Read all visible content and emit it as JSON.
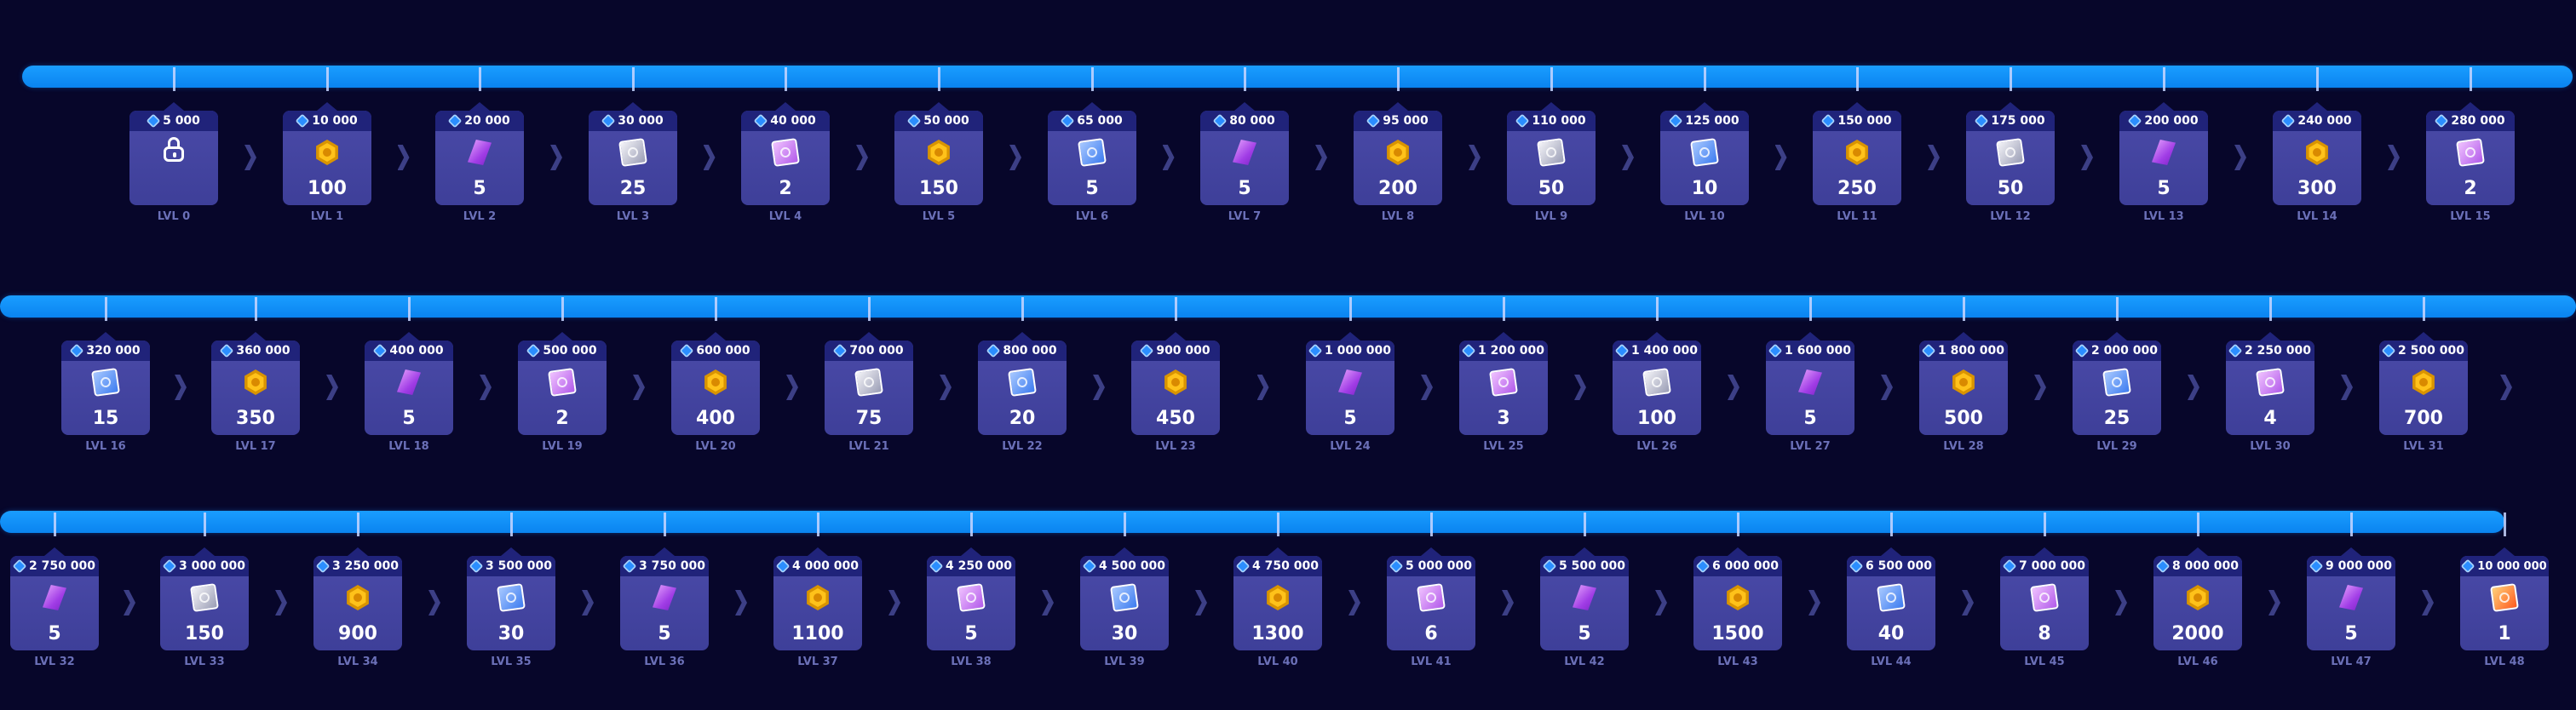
{
  "rows": [
    {
      "levels": [
        {
          "xp": "5 000",
          "reward": "lock",
          "amount": "",
          "label": "LVL 0"
        },
        {
          "xp": "10 000",
          "reward": "coin",
          "amount": "100",
          "label": "LVL 1"
        },
        {
          "xp": "20 000",
          "reward": "gem",
          "amount": "5",
          "label": "LVL 2"
        },
        {
          "xp": "30 000",
          "reward": "card-silver",
          "amount": "25",
          "label": "LVL 3"
        },
        {
          "xp": "40 000",
          "reward": "card-purple",
          "amount": "2",
          "label": "LVL 4"
        },
        {
          "xp": "50 000",
          "reward": "coin",
          "amount": "150",
          "label": "LVL 5"
        },
        {
          "xp": "65 000",
          "reward": "card-blue",
          "amount": "5",
          "label": "LVL 6"
        },
        {
          "xp": "80 000",
          "reward": "gem",
          "amount": "5",
          "label": "LVL 7"
        },
        {
          "xp": "95 000",
          "reward": "coin",
          "amount": "200",
          "label": "LVL 8"
        },
        {
          "xp": "110 000",
          "reward": "card-silver",
          "amount": "50",
          "label": "LVL 9"
        },
        {
          "xp": "125 000",
          "reward": "card-blue",
          "amount": "10",
          "label": "LVL 10"
        },
        {
          "xp": "150 000",
          "reward": "coin",
          "amount": "250",
          "label": "LVL 11"
        },
        {
          "xp": "175 000",
          "reward": "card-silver",
          "amount": "50",
          "label": "LVL 12"
        },
        {
          "xp": "200 000",
          "reward": "gem",
          "amount": "5",
          "label": "LVL 13"
        },
        {
          "xp": "240 000",
          "reward": "coin",
          "amount": "300",
          "label": "LVL 14"
        },
        {
          "xp": "280 000",
          "reward": "card-purple",
          "amount": "2",
          "label": "LVL 15"
        }
      ]
    },
    {
      "levels": [
        {
          "xp": "320 000",
          "reward": "card-blue",
          "amount": "15",
          "label": "LVL 16"
        },
        {
          "xp": "360 000",
          "reward": "coin",
          "amount": "350",
          "label": "LVL 17"
        },
        {
          "xp": "400 000",
          "reward": "gem",
          "amount": "5",
          "label": "LVL 18"
        },
        {
          "xp": "500 000",
          "reward": "card-purple",
          "amount": "2",
          "label": "LVL 19"
        },
        {
          "xp": "600 000",
          "reward": "coin",
          "amount": "400",
          "label": "LVL 20"
        },
        {
          "xp": "700 000",
          "reward": "card-silver",
          "amount": "75",
          "label": "LVL 21"
        },
        {
          "xp": "800 000",
          "reward": "card-blue",
          "amount": "20",
          "label": "LVL 22"
        },
        {
          "xp": "900 000",
          "reward": "coin",
          "amount": "450",
          "label": "LVL 23"
        },
        {
          "xp": "1 000 000",
          "reward": "gem",
          "amount": "5",
          "label": "LVL 24"
        },
        {
          "xp": "1 200 000",
          "reward": "card-purple",
          "amount": "3",
          "label": "LVL 25"
        },
        {
          "xp": "1 400 000",
          "reward": "card-silver",
          "amount": "100",
          "label": "LVL 26"
        },
        {
          "xp": "1 600 000",
          "reward": "gem",
          "amount": "5",
          "label": "LVL 27"
        },
        {
          "xp": "1 800 000",
          "reward": "coin",
          "amount": "500",
          "label": "LVL 28"
        },
        {
          "xp": "2 000 000",
          "reward": "card-blue",
          "amount": "25",
          "label": "LVL 29"
        },
        {
          "xp": "2 250 000",
          "reward": "card-purple",
          "amount": "4",
          "label": "LVL 30"
        },
        {
          "xp": "2 500 000",
          "reward": "coin",
          "amount": "700",
          "label": "LVL 31"
        }
      ]
    },
    {
      "levels": [
        {
          "xp": "2 750 000",
          "reward": "gem",
          "amount": "5",
          "label": "LVL 32"
        },
        {
          "xp": "3 000 000",
          "reward": "card-silver",
          "amount": "150",
          "label": "LVL 33"
        },
        {
          "xp": "3 250 000",
          "reward": "coin",
          "amount": "900",
          "label": "LVL 34"
        },
        {
          "xp": "3 500 000",
          "reward": "card-blue",
          "amount": "30",
          "label": "LVL 35"
        },
        {
          "xp": "3 750 000",
          "reward": "gem",
          "amount": "5",
          "label": "LVL 36"
        },
        {
          "xp": "4 000 000",
          "reward": "coin",
          "amount": "1100",
          "label": "LVL 37"
        },
        {
          "xp": "4 250 000",
          "reward": "card-purple",
          "amount": "5",
          "label": "LVL 38"
        },
        {
          "xp": "4 500 000",
          "reward": "card-blue",
          "amount": "30",
          "label": "LVL 39"
        },
        {
          "xp": "4 750 000",
          "reward": "coin",
          "amount": "1300",
          "label": "LVL 40"
        },
        {
          "xp": "5 000 000",
          "reward": "card-purple",
          "amount": "6",
          "label": "LVL 41"
        },
        {
          "xp": "5 500 000",
          "reward": "gem",
          "amount": "5",
          "label": "LVL 42"
        },
        {
          "xp": "6 000 000",
          "reward": "coin",
          "amount": "1500",
          "label": "LVL 43"
        },
        {
          "xp": "6 500 000",
          "reward": "card-blue",
          "amount": "40",
          "label": "LVL 44"
        },
        {
          "xp": "7 000 000",
          "reward": "card-purple",
          "amount": "8",
          "label": "LVL 45"
        },
        {
          "xp": "8 000 000",
          "reward": "coin",
          "amount": "2000",
          "label": "LVL 46"
        },
        {
          "xp": "9 000 000",
          "reward": "gem",
          "amount": "5",
          "label": "LVL 47"
        },
        {
          "xp": "10 000 000",
          "reward": "card-orange",
          "amount": "1",
          "label": "LVL 48"
        }
      ]
    }
  ],
  "icons": {
    "xp": "xp-token-icon",
    "lock": "padlock-icon",
    "coin": "coin-icon",
    "gem": "gem-icon",
    "card-silver": "silver-card-icon",
    "card-blue": "blue-card-icon",
    "card-purple": "purple-card-icon",
    "card-orange": "orange-card-icon"
  },
  "colors": {
    "background": "#07062a",
    "track": "#1a9dff",
    "card": "#4a4aa8",
    "card_header": "#20237a",
    "level_label": "#6b70b8"
  }
}
